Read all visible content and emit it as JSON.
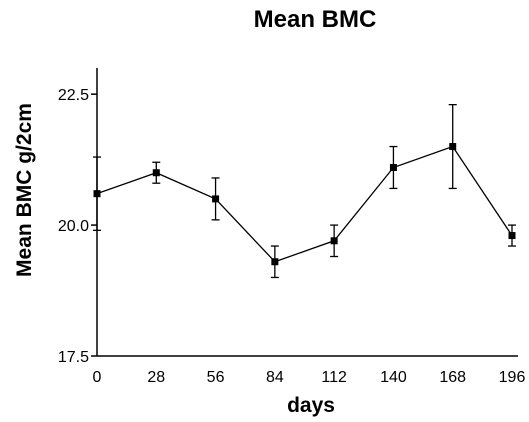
{
  "chart_data": {
    "type": "line",
    "title": "Mean BMC",
    "xlabel": "days",
    "ylabel": "Mean BMC g/2cm",
    "x": [
      0,
      28,
      56,
      84,
      112,
      140,
      168,
      196
    ],
    "x_ticks": [
      "0",
      "28",
      "56",
      "84",
      "112",
      "140",
      "168",
      "196"
    ],
    "y_ticks": [
      "17.5",
      "20.0",
      "22.5"
    ],
    "ylim": [
      17.5,
      23.0
    ],
    "xlim": [
      0,
      196
    ],
    "grid": false,
    "series": [
      {
        "values": [
          20.6,
          21.0,
          20.5,
          19.3,
          19.7,
          21.1,
          21.5,
          19.8
        ],
        "error_low": [
          19.9,
          20.8,
          20.1,
          19.0,
          19.4,
          20.7,
          20.7,
          19.6
        ],
        "error_high": [
          21.3,
          21.2,
          20.9,
          19.6,
          20.0,
          21.5,
          22.3,
          20.0
        ],
        "marker": "square",
        "color": "#000000"
      }
    ]
  }
}
